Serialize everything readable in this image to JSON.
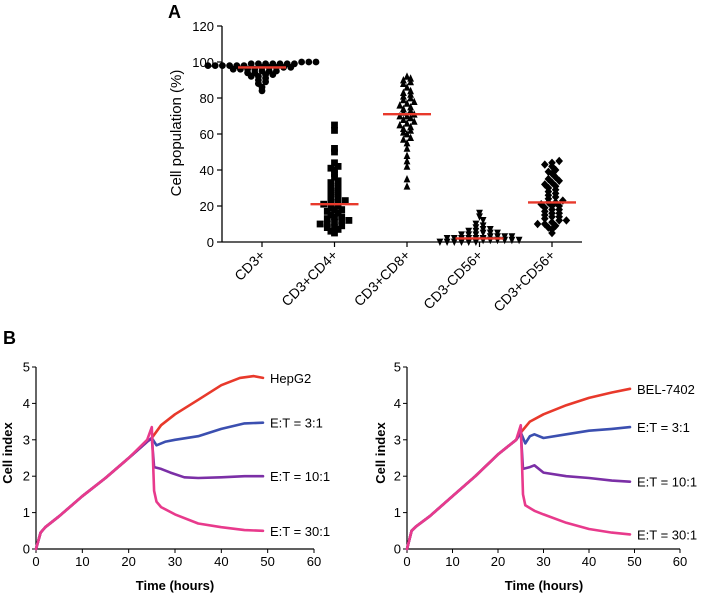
{
  "chart_data": [
    {
      "panel_label": "A",
      "type": "scatter",
      "ylabel": "Cell population (%)",
      "ylim": [
        0,
        120
      ],
      "yticks": [
        0,
        20,
        40,
        60,
        80,
        100,
        120
      ],
      "categories": [
        "CD3+",
        "CD3+CD4+",
        "CD3+CD8+",
        "CD3-CD56+",
        "CD3+CD56+"
      ],
      "markers": [
        "circle",
        "square",
        "triangle-up",
        "triangle-down",
        "diamond"
      ],
      "mean_line_color": "#e8392b",
      "point_color": "#000000",
      "means": [
        97,
        21,
        71,
        2,
        22
      ],
      "series": [
        {
          "values": [
            84,
            86,
            88,
            89,
            90,
            91,
            92,
            92,
            93,
            93,
            94,
            94,
            95,
            95,
            95,
            96,
            96,
            96,
            96,
            97,
            97,
            97,
            97,
            97,
            98,
            98,
            98,
            98,
            98,
            98,
            99,
            99,
            99,
            99,
            99,
            99,
            99,
            100,
            100,
            100
          ]
        },
        {
          "values": [
            5,
            6,
            7,
            8,
            8,
            9,
            10,
            10,
            11,
            12,
            12,
            13,
            14,
            14,
            15,
            16,
            17,
            18,
            18,
            19,
            20,
            21,
            22,
            22,
            23,
            24,
            25,
            26,
            27,
            28,
            29,
            30,
            31,
            33,
            34,
            36,
            38,
            40,
            41,
            42,
            44,
            50,
            52,
            62,
            65
          ]
        },
        {
          "values": [
            31,
            35,
            42,
            45,
            48,
            52,
            55,
            57,
            58,
            60,
            61,
            62,
            63,
            64,
            65,
            66,
            67,
            68,
            69,
            70,
            70,
            71,
            72,
            73,
            74,
            75,
            76,
            77,
            78,
            79,
            80,
            81,
            82,
            83,
            84,
            86,
            88,
            89,
            90,
            91,
            92
          ]
        },
        {
          "values": [
            0,
            0,
            0,
            0,
            0,
            0,
            1,
            1,
            1,
            1,
            1,
            1,
            2,
            2,
            2,
            2,
            2,
            2,
            3,
            3,
            3,
            3,
            4,
            4,
            4,
            5,
            5,
            5,
            6,
            6,
            7,
            7,
            8,
            9,
            10,
            12,
            14,
            16
          ]
        },
        {
          "values": [
            5,
            7,
            8,
            9,
            10,
            10,
            11,
            12,
            12,
            13,
            14,
            14,
            15,
            16,
            16,
            17,
            18,
            18,
            19,
            20,
            20,
            21,
            22,
            22,
            23,
            24,
            25,
            26,
            27,
            28,
            29,
            30,
            31,
            32,
            33,
            34,
            35,
            36,
            38,
            39,
            40,
            42,
            43,
            44,
            45
          ]
        }
      ]
    },
    {
      "panel_label": "B",
      "type": "line",
      "xlabel": "Time (hours)",
      "ylabel": "Cell index",
      "xlim": [
        0,
        60
      ],
      "ylim": [
        0,
        5
      ],
      "xticks": [
        0,
        10,
        20,
        30,
        40,
        50,
        60
      ],
      "yticks": [
        0,
        1,
        2,
        3,
        4,
        5
      ],
      "series": [
        {
          "name": "HepG2",
          "color": "#e8392b",
          "x": [
            0,
            1,
            2,
            5,
            10,
            15,
            20,
            24,
            25,
            27,
            30,
            35,
            40,
            44,
            47,
            49
          ],
          "y": [
            0,
            0.45,
            0.6,
            0.9,
            1.45,
            1.95,
            2.5,
            2.95,
            3.05,
            3.4,
            3.7,
            4.1,
            4.5,
            4.7,
            4.75,
            4.7
          ]
        },
        {
          "name": "E:T = 3:1",
          "color": "#3b4fb0",
          "x": [
            0,
            1,
            2,
            5,
            10,
            15,
            20,
            24,
            25,
            26,
            28,
            30,
            35,
            40,
            45,
            49
          ],
          "y": [
            0,
            0.45,
            0.6,
            0.9,
            1.45,
            1.95,
            2.5,
            2.95,
            3.05,
            2.85,
            2.95,
            3.0,
            3.1,
            3.3,
            3.45,
            3.47
          ]
        },
        {
          "name": "E:T = 10:1",
          "color": "#7b2fa6",
          "x": [
            0,
            1,
            2,
            5,
            10,
            15,
            20,
            24,
            25,
            25.5,
            27,
            29,
            32,
            35,
            40,
            45,
            49
          ],
          "y": [
            0,
            0.45,
            0.6,
            0.9,
            1.45,
            1.95,
            2.5,
            2.95,
            3.05,
            2.25,
            2.2,
            2.1,
            1.97,
            1.95,
            1.97,
            2.0,
            2.0
          ]
        },
        {
          "name": "E:T = 30:1",
          "color": "#e83a8c",
          "x": [
            0,
            1,
            2,
            5,
            10,
            15,
            20,
            24,
            25,
            25.5,
            26,
            27,
            30,
            35,
            40,
            45,
            49
          ],
          "y": [
            0,
            0.45,
            0.6,
            0.9,
            1.45,
            1.95,
            2.5,
            3.0,
            3.35,
            1.6,
            1.3,
            1.15,
            0.95,
            0.7,
            0.6,
            0.52,
            0.5
          ]
        }
      ]
    },
    {
      "type": "line",
      "xlabel": "Time (hours)",
      "ylabel": "Cell index",
      "xlim": [
        0,
        60
      ],
      "ylim": [
        0,
        5
      ],
      "xticks": [
        0,
        10,
        20,
        30,
        40,
        50,
        60
      ],
      "yticks": [
        0,
        1,
        2,
        3,
        4,
        5
      ],
      "series": [
        {
          "name": "BEL-7402",
          "color": "#e8392b",
          "x": [
            0,
            1,
            2,
            5,
            10,
            15,
            20,
            24,
            25,
            27,
            30,
            35,
            40,
            45,
            49
          ],
          "y": [
            0,
            0.5,
            0.62,
            0.9,
            1.45,
            2.0,
            2.6,
            3.0,
            3.2,
            3.5,
            3.7,
            3.95,
            4.15,
            4.3,
            4.4
          ]
        },
        {
          "name": "E:T = 3:1",
          "color": "#3b4fb0",
          "x": [
            0,
            1,
            2,
            5,
            10,
            15,
            20,
            24,
            25,
            26,
            27,
            28,
            30,
            35,
            40,
            45,
            49
          ],
          "y": [
            0,
            0.5,
            0.62,
            0.9,
            1.45,
            2.0,
            2.6,
            3.0,
            3.2,
            2.9,
            3.1,
            3.15,
            3.05,
            3.15,
            3.25,
            3.3,
            3.35
          ]
        },
        {
          "name": "E:T = 10:1",
          "color": "#7b2fa6",
          "x": [
            0,
            1,
            2,
            5,
            10,
            15,
            20,
            24,
            25,
            25.5,
            27,
            28,
            30,
            35,
            40,
            45,
            49
          ],
          "y": [
            0,
            0.5,
            0.62,
            0.9,
            1.45,
            2.0,
            2.6,
            3.0,
            3.2,
            2.2,
            2.25,
            2.3,
            2.1,
            2.0,
            1.95,
            1.88,
            1.85
          ]
        },
        {
          "name": "E:T = 30:1",
          "color": "#e83a8c",
          "x": [
            0,
            1,
            2,
            5,
            10,
            15,
            20,
            24,
            25,
            25.5,
            26,
            28,
            30,
            35,
            40,
            45,
            49
          ],
          "y": [
            0,
            0.5,
            0.62,
            0.9,
            1.45,
            2.0,
            2.6,
            3.0,
            3.4,
            1.5,
            1.2,
            1.05,
            0.95,
            0.72,
            0.55,
            0.45,
            0.4
          ]
        }
      ]
    }
  ]
}
